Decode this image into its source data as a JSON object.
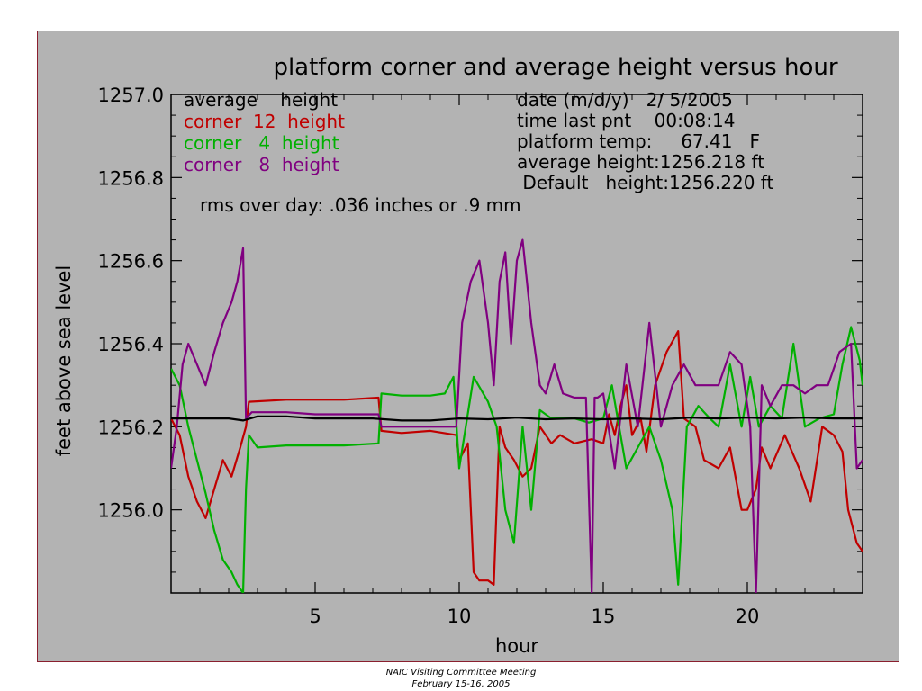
{
  "chart_data": {
    "type": "line",
    "title": "platform corner and average height versus hour",
    "xlabel": "hour",
    "ylabel": "feet above sea level",
    "xlim": [
      0,
      24
    ],
    "ylim": [
      1255.8,
      1257.0
    ],
    "xticks": [
      5,
      10,
      15,
      20
    ],
    "yticks": [
      1256.0,
      1256.2,
      1256.4,
      1256.6,
      1256.8,
      1257.0
    ],
    "ytick_labels": [
      "1256.0",
      "1256.2",
      "1256.4",
      "1256.6",
      "1256.8",
      "1257.0"
    ],
    "legend": [
      {
        "text": "average    height",
        "color": "#000000"
      },
      {
        "text": "corner  12  height",
        "color": "#c00000"
      },
      {
        "text": "corner   4  height",
        "color": "#00b000"
      },
      {
        "text": "corner   8  height",
        "color": "#800080"
      }
    ],
    "info": [
      "date (m/d/y)   2/ 5/2005",
      "time last pnt    00:08:14",
      "platform temp:     67.41   F",
      "average height:1256.218 ft",
      " Default   height:1256.220 ft"
    ],
    "note": "rms over day: .036 inches or .9 mm",
    "series": [
      {
        "name": "average height",
        "color": "#000000",
        "x": [
          0,
          1,
          2,
          2.5,
          3,
          4,
          5,
          6,
          7,
          8,
          9,
          10,
          11,
          12,
          13,
          14,
          15,
          16,
          17,
          18,
          19,
          20,
          21,
          22,
          23,
          24
        ],
        "y": [
          1256.22,
          1256.22,
          1256.22,
          1256.215,
          1256.225,
          1256.225,
          1256.22,
          1256.22,
          1256.22,
          1256.215,
          1256.215,
          1256.22,
          1256.218,
          1256.222,
          1256.218,
          1256.22,
          1256.218,
          1256.22,
          1256.218,
          1256.222,
          1256.22,
          1256.222,
          1256.22,
          1256.222,
          1256.22,
          1256.22
        ]
      },
      {
        "name": "corner 12 height",
        "color": "#c00000",
        "x": [
          0,
          0.3,
          0.6,
          0.9,
          1.2,
          1.5,
          1.8,
          2.1,
          2.4,
          2.6,
          2.7,
          4,
          5,
          6,
          7.2,
          7.3,
          8,
          9,
          9.9,
          10,
          10.3,
          10.5,
          10.7,
          11,
          11.2,
          11.4,
          11.6,
          11.9,
          12.2,
          12.5,
          12.8,
          13.2,
          13.5,
          14,
          14.6,
          15,
          15.2,
          15.4,
          15.6,
          15.8,
          16,
          16.3,
          16.5,
          16.8,
          17.2,
          17.6,
          17.8,
          18.2,
          18.5,
          19,
          19.4,
          19.8,
          20.0,
          20.3,
          20.5,
          20.8,
          21.3,
          21.8,
          22.2,
          22.6,
          23,
          23.3,
          23.5,
          23.8,
          24
        ],
        "y": [
          1256.22,
          1256.18,
          1256.08,
          1256.02,
          1255.98,
          1256.05,
          1256.12,
          1256.08,
          1256.15,
          1256.2,
          1256.26,
          1256.265,
          1256.265,
          1256.265,
          1256.27,
          1256.19,
          1256.185,
          1256.19,
          1256.18,
          1256.12,
          1256.16,
          1255.85,
          1255.83,
          1255.83,
          1255.82,
          1256.2,
          1256.15,
          1256.12,
          1256.08,
          1256.1,
          1256.2,
          1256.16,
          1256.18,
          1256.16,
          1256.17,
          1256.16,
          1256.23,
          1256.18,
          1256.25,
          1256.3,
          1256.18,
          1256.22,
          1256.14,
          1256.3,
          1256.38,
          1256.43,
          1256.22,
          1256.2,
          1256.12,
          1256.1,
          1256.15,
          1256.0,
          1256.0,
          1256.05,
          1256.15,
          1256.1,
          1256.18,
          1256.1,
          1256.02,
          1256.2,
          1256.18,
          1256.14,
          1256.0,
          1255.92,
          1255.9
        ]
      },
      {
        "name": "corner 4 height",
        "color": "#00b000",
        "x": [
          0,
          0.3,
          0.6,
          0.9,
          1.2,
          1.5,
          1.8,
          2.1,
          2.3,
          2.5,
          2.6,
          2.7,
          3,
          4,
          5,
          6,
          7.2,
          7.3,
          8,
          9,
          9.5,
          9.8,
          10.0,
          10.5,
          11,
          11.3,
          11.6,
          11.9,
          12.2,
          12.5,
          12.8,
          13.2,
          13.6,
          14,
          14.5,
          15,
          15.3,
          15.5,
          15.8,
          16.2,
          16.6,
          17,
          17.4,
          17.6,
          17.9,
          18.3,
          18.7,
          19,
          19.4,
          19.8,
          20.1,
          20.4,
          20.8,
          21.2,
          21.6,
          22,
          22.5,
          23,
          23.3,
          23.6,
          23.9,
          24
        ],
        "y": [
          1256.34,
          1256.3,
          1256.2,
          1256.12,
          1256.04,
          1255.95,
          1255.88,
          1255.85,
          1255.82,
          1255.8,
          1256.05,
          1256.18,
          1256.15,
          1256.155,
          1256.155,
          1256.155,
          1256.16,
          1256.28,
          1256.275,
          1256.275,
          1256.28,
          1256.32,
          1256.1,
          1256.32,
          1256.26,
          1256.2,
          1256.0,
          1255.92,
          1256.2,
          1256.0,
          1256.24,
          1256.22,
          1256.22,
          1256.22,
          1256.21,
          1256.22,
          1256.3,
          1256.22,
          1256.1,
          1256.15,
          1256.2,
          1256.12,
          1256.0,
          1255.82,
          1256.2,
          1256.25,
          1256.22,
          1256.2,
          1256.35,
          1256.2,
          1256.32,
          1256.2,
          1256.25,
          1256.22,
          1256.4,
          1256.2,
          1256.22,
          1256.23,
          1256.35,
          1256.44,
          1256.36,
          1256.3
        ]
      },
      {
        "name": "corner 8 height",
        "color": "#800080",
        "x": [
          0,
          0.2,
          0.4,
          0.6,
          0.9,
          1.2,
          1.5,
          1.8,
          2.1,
          2.3,
          2.5,
          2.6,
          2.8,
          4,
          5,
          6,
          7.2,
          7.3,
          8,
          9,
          9.9,
          10.1,
          10.4,
          10.7,
          11.0,
          11.2,
          11.4,
          11.6,
          11.8,
          12.0,
          12.2,
          12.5,
          12.8,
          13.0,
          13.3,
          13.6,
          14,
          14.4,
          14.6,
          14.7,
          14.8,
          15,
          15.4,
          15.8,
          16.2,
          16.6,
          17,
          17.4,
          17.8,
          18.2,
          18.6,
          19,
          19.4,
          19.8,
          20.1,
          20.3,
          20.5,
          20.8,
          21.2,
          21.6,
          22,
          22.4,
          22.8,
          23.2,
          23.6,
          23.8,
          24
        ],
        "y": [
          1256.1,
          1256.2,
          1256.35,
          1256.4,
          1256.35,
          1256.3,
          1256.38,
          1256.45,
          1256.5,
          1256.55,
          1256.63,
          1256.22,
          1256.235,
          1256.235,
          1256.23,
          1256.23,
          1256.23,
          1256.2,
          1256.2,
          1256.2,
          1256.2,
          1256.45,
          1256.55,
          1256.6,
          1256.45,
          1256.3,
          1256.55,
          1256.62,
          1256.4,
          1256.6,
          1256.65,
          1256.45,
          1256.3,
          1256.28,
          1256.35,
          1256.28,
          1256.27,
          1256.27,
          1255.8,
          1256.27,
          1256.27,
          1256.28,
          1256.1,
          1256.35,
          1256.2,
          1256.45,
          1256.2,
          1256.3,
          1256.35,
          1256.3,
          1256.3,
          1256.3,
          1256.38,
          1256.35,
          1256.2,
          1255.8,
          1256.3,
          1256.25,
          1256.3,
          1256.3,
          1256.28,
          1256.3,
          1256.3,
          1256.38,
          1256.4,
          1256.1,
          1256.12
        ]
      }
    ]
  },
  "footer": {
    "line1": "NAIC Visiting Committee Meeting",
    "line2": "February 15-16, 2005"
  }
}
